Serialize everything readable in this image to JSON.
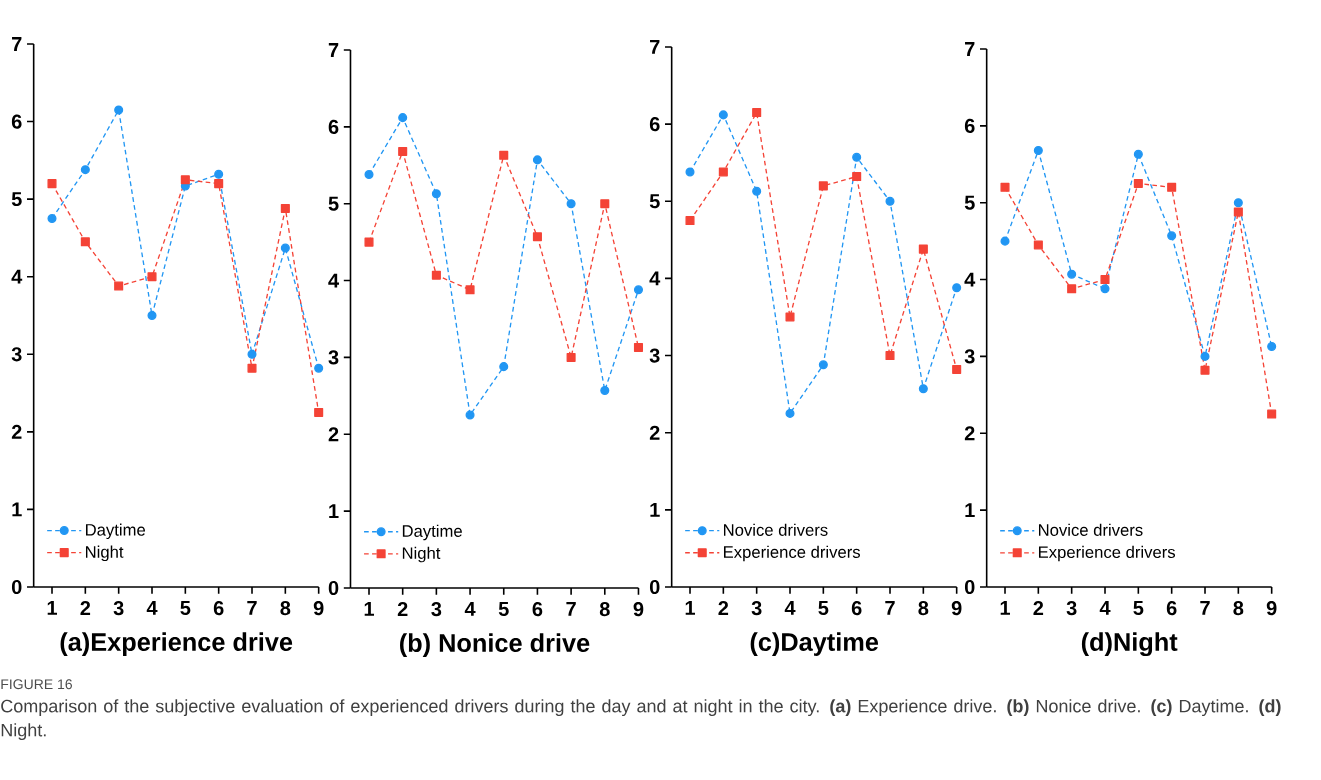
{
  "chart_data": [
    {
      "type": "line",
      "xlabel": "(a)Experience drive",
      "categories": [
        "1",
        "2",
        "3",
        "4",
        "5",
        "6",
        "7",
        "8",
        "9"
      ],
      "ylim": [
        0,
        7
      ],
      "yticks": [
        0,
        1,
        2,
        3,
        4,
        5,
        6,
        7
      ],
      "grid": false,
      "legend": "bottom left",
      "line_style": "dashed",
      "series": [
        {
          "name": "Daytime",
          "color": "#2196f3",
          "marker": "circle",
          "values": [
            4.75,
            5.38,
            6.15,
            3.5,
            5.17,
            5.32,
            3.0,
            4.37,
            2.82
          ]
        },
        {
          "name": "Night",
          "color": "#f44336",
          "marker": "square",
          "values": [
            5.2,
            4.45,
            3.88,
            4.0,
            5.25,
            5.2,
            2.82,
            4.88,
            2.25
          ]
        }
      ],
      "annotations": [
        "FIGURE 16",
        "Comparison of the subjective evaluation of experienced drivers during the day and at night in the city. **(a)** Experience drive. **(b)** Nonice drive. **(c)** Daytime. **(d)** Night."
      ]
    },
    {
      "type": "line",
      "xlabel": "(b) Nonice drive",
      "categories": [
        "1",
        "2",
        "3",
        "4",
        "5",
        "6",
        "7",
        "8",
        "9"
      ],
      "ylim": [
        0,
        7
      ],
      "yticks": [
        0,
        1,
        2,
        3,
        4,
        5,
        6,
        7
      ],
      "grid": false,
      "legend": "bottom left",
      "line_style": "dashed",
      "series": [
        {
          "name": "Daytime",
          "color": "#2196f3",
          "marker": "circle",
          "values": [
            5.38,
            6.12,
            5.13,
            2.25,
            2.88,
            5.57,
            5.0,
            2.57,
            3.88
          ]
        },
        {
          "name": "Night",
          "color": "#f44336",
          "marker": "square",
          "values": [
            4.5,
            5.68,
            4.07,
            3.88,
            5.63,
            4.57,
            3.0,
            5.0,
            3.13
          ]
        }
      ]
    },
    {
      "type": "line",
      "xlabel": "(c)Daytime",
      "categories": [
        "1",
        "2",
        "3",
        "4",
        "5",
        "6",
        "7",
        "8",
        "9"
      ],
      "ylim": [
        0,
        7
      ],
      "yticks": [
        0,
        1,
        2,
        3,
        4,
        5,
        6,
        7
      ],
      "grid": false,
      "legend": "bottom left",
      "line_style": "dashed",
      "series": [
        {
          "name": "Novice drivers",
          "color": "#2196f3",
          "marker": "circle",
          "values": [
            5.38,
            6.12,
            5.13,
            2.25,
            2.88,
            5.57,
            5.0,
            2.57,
            3.88
          ]
        },
        {
          "name": "Experience drivers",
          "color": "#f44336",
          "marker": "square",
          "values": [
            4.75,
            5.38,
            6.15,
            3.5,
            5.2,
            5.32,
            3.0,
            4.38,
            2.82
          ]
        }
      ]
    },
    {
      "type": "line",
      "xlabel": "(d)Night",
      "categories": [
        "1",
        "2",
        "3",
        "4",
        "5",
        "6",
        "7",
        "8",
        "9"
      ],
      "ylim": [
        0,
        7
      ],
      "yticks": [
        0,
        1,
        2,
        3,
        4,
        5,
        6,
        7
      ],
      "grid": false,
      "legend": "bottom left",
      "line_style": "dashed",
      "series": [
        {
          "name": "Novice drivers",
          "color": "#2196f3",
          "marker": "circle",
          "values": [
            4.5,
            5.68,
            4.07,
            3.88,
            5.63,
            4.57,
            3.0,
            5.0,
            3.13
          ]
        },
        {
          "name": "Experience drivers",
          "color": "#f44336",
          "marker": "square",
          "values": [
            5.2,
            4.45,
            3.88,
            4.0,
            5.25,
            5.2,
            2.82,
            4.88,
            2.25
          ]
        }
      ]
    }
  ]
}
